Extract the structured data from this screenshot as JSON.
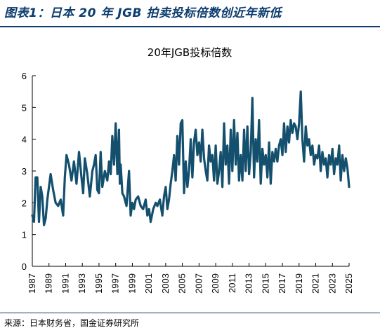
{
  "header": {
    "title": "图表1：日本 20 年 JGB 拍卖投标倍数创近年新低"
  },
  "footer": {
    "source": "来源：日本财务省，国金证券研究所"
  },
  "colors": {
    "line": "#14506e",
    "accent": "#0d3c6e"
  },
  "chart_data": {
    "type": "line",
    "title": "20年JGB投标倍数",
    "xlabel": "",
    "ylabel": "",
    "xlim": [
      1987,
      2025
    ],
    "ylim": [
      0,
      6
    ],
    "y_ticks": [
      "0",
      "1",
      "2",
      "3",
      "4",
      "5",
      "6"
    ],
    "x_ticks": [
      "1987",
      "1989",
      "1991",
      "1993",
      "1995",
      "1997",
      "1999",
      "2001",
      "2003",
      "2005",
      "2007",
      "2009",
      "2011",
      "2013",
      "2015",
      "2017",
      "2019",
      "2021",
      "2023",
      "2025"
    ],
    "grid": false,
    "legend": "none",
    "series": [
      {
        "x": [
          1987.0,
          1987.2,
          1987.4,
          1987.6,
          1987.8,
          1988.0,
          1988.2,
          1988.4,
          1988.6,
          1988.8,
          1989.0,
          1989.2,
          1989.5,
          1989.8,
          1990.1,
          1990.4,
          1990.7,
          1990.9,
          1991.1,
          1991.4,
          1991.7,
          1992.0,
          1992.3,
          1992.6,
          1992.9,
          1993.1,
          1993.3,
          1993.6,
          1993.9,
          1994.2,
          1994.4,
          1994.6,
          1994.8,
          1995.0,
          1995.2,
          1995.4,
          1995.7,
          1996.0,
          1996.2,
          1996.4,
          1996.6,
          1996.8,
          1997.0,
          1997.2,
          1997.4,
          1997.5,
          1997.6,
          1997.8,
          1998.0,
          1998.3,
          1998.6,
          1998.8,
          1999.0,
          1999.2,
          1999.4,
          1999.7,
          2000.0,
          2000.3,
          2000.6,
          2000.8,
          2001.0,
          2001.2,
          2001.5,
          2001.8,
          2002.0,
          2002.3,
          2002.6,
          2002.8,
          2003.0,
          2003.2,
          2003.4,
          2003.6,
          2003.8,
          2004.0,
          2004.2,
          2004.4,
          2004.6,
          2004.8,
          2005.0,
          2005.2,
          2005.4,
          2005.6,
          2005.8,
          2006.0,
          2006.2,
          2006.4,
          2006.6,
          2006.8,
          2007.0,
          2007.2,
          2007.4,
          2007.6,
          2007.8,
          2008.0,
          2008.2,
          2008.4,
          2008.6,
          2008.8,
          2009.0,
          2009.2,
          2009.4,
          2009.6,
          2009.8,
          2010.0,
          2010.2,
          2010.4,
          2010.6,
          2010.8,
          2011.0,
          2011.2,
          2011.4,
          2011.6,
          2011.8,
          2012.0,
          2012.2,
          2012.4,
          2012.6,
          2012.8,
          2013.0,
          2013.2,
          2013.4,
          2013.6,
          2013.8,
          2014.0,
          2014.2,
          2014.4,
          2014.6,
          2014.8,
          2015.0,
          2015.2,
          2015.4,
          2015.6,
          2015.8,
          2016.0,
          2016.2,
          2016.4,
          2016.6,
          2016.8,
          2017.0,
          2017.2,
          2017.4,
          2017.6,
          2017.8,
          2018.0,
          2018.2,
          2018.4,
          2018.6,
          2018.8,
          2019.0,
          2019.2,
          2019.4,
          2019.6,
          2019.8,
          2020.0,
          2020.2,
          2020.4,
          2020.6,
          2020.8,
          2021.0,
          2021.2,
          2021.4,
          2021.6,
          2021.8,
          2022.0,
          2022.2,
          2022.4,
          2022.6,
          2022.8,
          2023.0,
          2023.2,
          2023.4,
          2023.6,
          2023.8,
          2024.0,
          2024.2,
          2024.4,
          2024.6,
          2024.8,
          2025.0
        ],
        "y": [
          1.6,
          1.4,
          2.8,
          2.8,
          1.4,
          2.5,
          2.2,
          1.3,
          1.5,
          2.1,
          2.5,
          2.9,
          2.4,
          2.0,
          1.9,
          2.1,
          1.6,
          2.8,
          3.5,
          3.2,
          2.7,
          3.3,
          2.6,
          3.6,
          2.8,
          2.3,
          3.4,
          2.9,
          2.2,
          3.0,
          3.2,
          3.5,
          2.4,
          2.3,
          3.6,
          2.5,
          3.0,
          2.7,
          3.3,
          2.9,
          4.1,
          3.2,
          4.5,
          2.9,
          4.3,
          2.6,
          3.2,
          2.3,
          2.2,
          1.9,
          3.0,
          1.6,
          2.0,
          1.8,
          2.1,
          2.2,
          1.9,
          1.8,
          2.1,
          1.6,
          1.8,
          1.4,
          1.8,
          2.0,
          1.9,
          2.1,
          1.6,
          2.2,
          2.5,
          1.8,
          2.1,
          2.6,
          3.0,
          3.5,
          2.7,
          4.1,
          3.2,
          4.5,
          4.6,
          2.3,
          3.3,
          2.5,
          3.0,
          4.0,
          2.8,
          3.9,
          4.3,
          3.5,
          3.9,
          3.3,
          4.3,
          3.4,
          3.0,
          2.7,
          3.8,
          3.3,
          3.5,
          2.7,
          3.8,
          2.6,
          3.0,
          3.6,
          2.5,
          4.5,
          3.2,
          3.8,
          2.6,
          4.3,
          3.0,
          4.6,
          3.2,
          4.2,
          2.7,
          3.5,
          2.7,
          4.3,
          3.0,
          4.4,
          2.9,
          3.6,
          5.3,
          2.8,
          4.0,
          3.3,
          4.6,
          2.6,
          3.7,
          3.2,
          3.5,
          2.8,
          3.9,
          2.6,
          3.6,
          3.3,
          3.7,
          3.3,
          3.8,
          4.0,
          3.5,
          4.5,
          3.6,
          4.4,
          3.9,
          4.6,
          4.2,
          4.5,
          4.4,
          4.0,
          4.5,
          5.5,
          4.0,
          3.3,
          4.4,
          3.8,
          4.0,
          3.5,
          3.8,
          3.2,
          3.5,
          3.4,
          3.8,
          3.0,
          3.6,
          3.2,
          3.4,
          2.8,
          3.5,
          3.2,
          3.7,
          2.9,
          3.4,
          3.2,
          3.8,
          2.7,
          3.5,
          3.0,
          3.4,
          3.1,
          2.5
        ]
      }
    ]
  }
}
